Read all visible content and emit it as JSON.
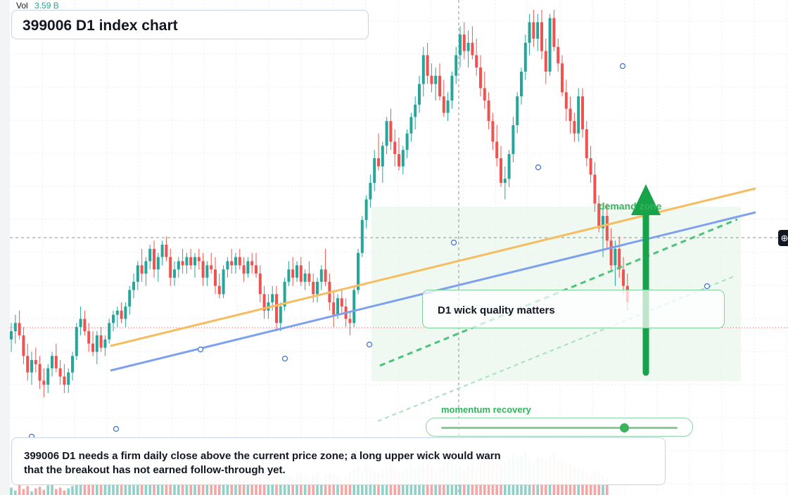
{
  "title": "399006 D1 index chart",
  "volume_legend": {
    "label": "Vol",
    "value": "3.59 B"
  },
  "annotations": {
    "wick_callout": "D1 wick quality matters",
    "demand_zone": "demand zone",
    "momentum_label": "momentum recovery",
    "momentum_level": 0.77,
    "note": "399006 D1 needs a firm daily close above the current price zone; a long upper wick would warn that the breakout has not earned follow-through yet."
  },
  "icons": {
    "crosshair": "crosshair-add-icon"
  },
  "colors": {
    "up": "#26a69a",
    "down": "#ef5350",
    "up_volume": "#8fd1c8",
    "down_volume": "#f2a7a6",
    "orange_trendline": "#f6bd60",
    "blue_trendline": "#7ea1ee",
    "green_trendline": "#4cc27a",
    "demand_arrow": "#16a34a",
    "demand_zone": "#eaf7ee"
  },
  "chart_data": {
    "type": "candlestick",
    "timeframe": "D1",
    "symbol": "399006",
    "y_range": [
      0,
      100
    ],
    "candles": [
      {
        "o": 20,
        "h": 24,
        "l": 17,
        "c": 22
      },
      {
        "o": 22,
        "h": 26,
        "l": 19,
        "c": 24
      },
      {
        "o": 24,
        "h": 27,
        "l": 20,
        "c": 21
      },
      {
        "o": 21,
        "h": 23,
        "l": 14,
        "c": 16
      },
      {
        "o": 16,
        "h": 19,
        "l": 10,
        "c": 12
      },
      {
        "o": 12,
        "h": 17,
        "l": 9,
        "c": 15
      },
      {
        "o": 15,
        "h": 18,
        "l": 12,
        "c": 14
      },
      {
        "o": 14,
        "h": 16,
        "l": 8,
        "c": 10
      },
      {
        "o": 10,
        "h": 13,
        "l": 6,
        "c": 9
      },
      {
        "o": 9,
        "h": 14,
        "l": 7,
        "c": 13
      },
      {
        "o": 13,
        "h": 17,
        "l": 11,
        "c": 16
      },
      {
        "o": 16,
        "h": 19,
        "l": 12,
        "c": 13
      },
      {
        "o": 13,
        "h": 15,
        "l": 9,
        "c": 11
      },
      {
        "o": 11,
        "h": 14,
        "l": 7,
        "c": 9
      },
      {
        "o": 9,
        "h": 13,
        "l": 7,
        "c": 12
      },
      {
        "o": 12,
        "h": 17,
        "l": 10,
        "c": 16
      },
      {
        "o": 16,
        "h": 24,
        "l": 15,
        "c": 23
      },
      {
        "o": 23,
        "h": 28,
        "l": 21,
        "c": 25
      },
      {
        "o": 25,
        "h": 27,
        "l": 21,
        "c": 22
      },
      {
        "o": 22,
        "h": 24,
        "l": 17,
        "c": 19
      },
      {
        "o": 19,
        "h": 22,
        "l": 16,
        "c": 17
      },
      {
        "o": 17,
        "h": 22,
        "l": 14,
        "c": 21
      },
      {
        "o": 21,
        "h": 23,
        "l": 17,
        "c": 18
      },
      {
        "o": 18,
        "h": 21,
        "l": 16,
        "c": 20
      },
      {
        "o": 20,
        "h": 25,
        "l": 19,
        "c": 24
      },
      {
        "o": 24,
        "h": 27,
        "l": 22,
        "c": 26
      },
      {
        "o": 26,
        "h": 28,
        "l": 23,
        "c": 27
      },
      {
        "o": 27,
        "h": 29,
        "l": 24,
        "c": 25
      },
      {
        "o": 25,
        "h": 29,
        "l": 23,
        "c": 28
      },
      {
        "o": 28,
        "h": 33,
        "l": 26,
        "c": 32
      },
      {
        "o": 32,
        "h": 36,
        "l": 30,
        "c": 34
      },
      {
        "o": 34,
        "h": 39,
        "l": 32,
        "c": 38
      },
      {
        "o": 38,
        "h": 42,
        "l": 34,
        "c": 36
      },
      {
        "o": 36,
        "h": 40,
        "l": 33,
        "c": 39
      },
      {
        "o": 39,
        "h": 43,
        "l": 37,
        "c": 42
      },
      {
        "o": 42,
        "h": 44,
        "l": 35,
        "c": 37
      },
      {
        "o": 37,
        "h": 41,
        "l": 34,
        "c": 40
      },
      {
        "o": 40,
        "h": 44,
        "l": 38,
        "c": 43
      },
      {
        "o": 43,
        "h": 45,
        "l": 39,
        "c": 40
      },
      {
        "o": 40,
        "h": 42,
        "l": 33,
        "c": 35
      },
      {
        "o": 35,
        "h": 39,
        "l": 33,
        "c": 37
      },
      {
        "o": 37,
        "h": 40,
        "l": 35,
        "c": 39
      },
      {
        "o": 39,
        "h": 42,
        "l": 36,
        "c": 38
      },
      {
        "o": 38,
        "h": 41,
        "l": 36,
        "c": 40
      },
      {
        "o": 40,
        "h": 42,
        "l": 37,
        "c": 38
      },
      {
        "o": 38,
        "h": 41,
        "l": 35,
        "c": 40
      },
      {
        "o": 40,
        "h": 42,
        "l": 37,
        "c": 39
      },
      {
        "o": 39,
        "h": 41,
        "l": 33,
        "c": 35
      },
      {
        "o": 35,
        "h": 39,
        "l": 33,
        "c": 38
      },
      {
        "o": 38,
        "h": 41,
        "l": 36,
        "c": 37
      },
      {
        "o": 37,
        "h": 40,
        "l": 31,
        "c": 33
      },
      {
        "o": 33,
        "h": 36,
        "l": 30,
        "c": 31
      },
      {
        "o": 31,
        "h": 38,
        "l": 30,
        "c": 37
      },
      {
        "o": 37,
        "h": 40,
        "l": 35,
        "c": 39
      },
      {
        "o": 39,
        "h": 42,
        "l": 36,
        "c": 38
      },
      {
        "o": 38,
        "h": 41,
        "l": 36,
        "c": 40
      },
      {
        "o": 40,
        "h": 42,
        "l": 37,
        "c": 38
      },
      {
        "o": 38,
        "h": 40,
        "l": 34,
        "c": 36
      },
      {
        "o": 36,
        "h": 40,
        "l": 35,
        "c": 39
      },
      {
        "o": 39,
        "h": 41,
        "l": 36,
        "c": 38
      },
      {
        "o": 38,
        "h": 41,
        "l": 35,
        "c": 36
      },
      {
        "o": 36,
        "h": 38,
        "l": 29,
        "c": 31
      },
      {
        "o": 31,
        "h": 33,
        "l": 25,
        "c": 27
      },
      {
        "o": 27,
        "h": 31,
        "l": 25,
        "c": 29
      },
      {
        "o": 29,
        "h": 33,
        "l": 27,
        "c": 31
      },
      {
        "o": 31,
        "h": 33,
        "l": 22,
        "c": 24
      },
      {
        "o": 24,
        "h": 29,
        "l": 22,
        "c": 28
      },
      {
        "o": 28,
        "h": 35,
        "l": 27,
        "c": 34
      },
      {
        "o": 34,
        "h": 39,
        "l": 33,
        "c": 37
      },
      {
        "o": 37,
        "h": 40,
        "l": 33,
        "c": 35
      },
      {
        "o": 35,
        "h": 39,
        "l": 34,
        "c": 38
      },
      {
        "o": 38,
        "h": 40,
        "l": 33,
        "c": 34
      },
      {
        "o": 34,
        "h": 37,
        "l": 32,
        "c": 36
      },
      {
        "o": 36,
        "h": 39,
        "l": 33,
        "c": 34
      },
      {
        "o": 34,
        "h": 36,
        "l": 29,
        "c": 31
      },
      {
        "o": 31,
        "h": 35,
        "l": 29,
        "c": 34
      },
      {
        "o": 34,
        "h": 38,
        "l": 32,
        "c": 37
      },
      {
        "o": 37,
        "h": 42,
        "l": 33,
        "c": 34
      },
      {
        "o": 34,
        "h": 36,
        "l": 27,
        "c": 29
      },
      {
        "o": 29,
        "h": 32,
        "l": 23,
        "c": 26
      },
      {
        "o": 26,
        "h": 31,
        "l": 25,
        "c": 30
      },
      {
        "o": 30,
        "h": 32,
        "l": 26,
        "c": 28
      },
      {
        "o": 28,
        "h": 30,
        "l": 23,
        "c": 25
      },
      {
        "o": 25,
        "h": 27,
        "l": 21,
        "c": 24
      },
      {
        "o": 24,
        "h": 33,
        "l": 23,
        "c": 32
      },
      {
        "o": 32,
        "h": 42,
        "l": 31,
        "c": 41
      },
      {
        "o": 41,
        "h": 50,
        "l": 40,
        "c": 49
      },
      {
        "o": 49,
        "h": 55,
        "l": 47,
        "c": 54
      },
      {
        "o": 54,
        "h": 60,
        "l": 52,
        "c": 58
      },
      {
        "o": 58,
        "h": 66,
        "l": 56,
        "c": 64
      },
      {
        "o": 64,
        "h": 70,
        "l": 61,
        "c": 62
      },
      {
        "o": 62,
        "h": 68,
        "l": 58,
        "c": 67
      },
      {
        "o": 67,
        "h": 74,
        "l": 65,
        "c": 73
      },
      {
        "o": 73,
        "h": 76,
        "l": 66,
        "c": 68
      },
      {
        "o": 68,
        "h": 71,
        "l": 62,
        "c": 65
      },
      {
        "o": 65,
        "h": 69,
        "l": 61,
        "c": 62
      },
      {
        "o": 62,
        "h": 67,
        "l": 60,
        "c": 66
      },
      {
        "o": 66,
        "h": 71,
        "l": 64,
        "c": 70
      },
      {
        "o": 70,
        "h": 75,
        "l": 68,
        "c": 74
      },
      {
        "o": 74,
        "h": 79,
        "l": 71,
        "c": 77
      },
      {
        "o": 77,
        "h": 84,
        "l": 75,
        "c": 82
      },
      {
        "o": 82,
        "h": 91,
        "l": 79,
        "c": 89
      },
      {
        "o": 89,
        "h": 92,
        "l": 82,
        "c": 84
      },
      {
        "o": 84,
        "h": 87,
        "l": 80,
        "c": 82
      },
      {
        "o": 82,
        "h": 86,
        "l": 78,
        "c": 84
      },
      {
        "o": 84,
        "h": 87,
        "l": 78,
        "c": 79
      },
      {
        "o": 79,
        "h": 83,
        "l": 74,
        "c": 75
      },
      {
        "o": 75,
        "h": 80,
        "l": 73,
        "c": 78
      },
      {
        "o": 78,
        "h": 85,
        "l": 76,
        "c": 84
      },
      {
        "o": 84,
        "h": 91,
        "l": 82,
        "c": 89
      },
      {
        "o": 89,
        "h": 96,
        "l": 86,
        "c": 94
      },
      {
        "o": 94,
        "h": 97,
        "l": 88,
        "c": 90
      },
      {
        "o": 90,
        "h": 95,
        "l": 86,
        "c": 92
      },
      {
        "o": 92,
        "h": 96,
        "l": 88,
        "c": 89
      },
      {
        "o": 89,
        "h": 93,
        "l": 84,
        "c": 86
      },
      {
        "o": 86,
        "h": 89,
        "l": 79,
        "c": 81
      },
      {
        "o": 81,
        "h": 85,
        "l": 76,
        "c": 78
      },
      {
        "o": 78,
        "h": 80,
        "l": 71,
        "c": 73
      },
      {
        "o": 73,
        "h": 75,
        "l": 66,
        "c": 68
      },
      {
        "o": 68,
        "h": 72,
        "l": 62,
        "c": 64
      },
      {
        "o": 64,
        "h": 67,
        "l": 57,
        "c": 58
      },
      {
        "o": 58,
        "h": 62,
        "l": 54,
        "c": 59
      },
      {
        "o": 59,
        "h": 66,
        "l": 57,
        "c": 65
      },
      {
        "o": 65,
        "h": 74,
        "l": 63,
        "c": 72
      },
      {
        "o": 72,
        "h": 80,
        "l": 70,
        "c": 79
      },
      {
        "o": 79,
        "h": 86,
        "l": 77,
        "c": 85
      },
      {
        "o": 85,
        "h": 94,
        "l": 83,
        "c": 92
      },
      {
        "o": 92,
        "h": 99,
        "l": 89,
        "c": 97
      },
      {
        "o": 97,
        "h": 100,
        "l": 91,
        "c": 93
      },
      {
        "o": 93,
        "h": 99,
        "l": 90,
        "c": 97
      },
      {
        "o": 97,
        "h": 100,
        "l": 88,
        "c": 90
      },
      {
        "o": 90,
        "h": 93,
        "l": 82,
        "c": 85
      },
      {
        "o": 85,
        "h": 99,
        "l": 84,
        "c": 98
      },
      {
        "o": 98,
        "h": 100,
        "l": 90,
        "c": 91
      },
      {
        "o": 91,
        "h": 93,
        "l": 85,
        "c": 87
      },
      {
        "o": 87,
        "h": 89,
        "l": 79,
        "c": 80
      },
      {
        "o": 80,
        "h": 83,
        "l": 73,
        "c": 76
      },
      {
        "o": 76,
        "h": 79,
        "l": 70,
        "c": 73
      },
      {
        "o": 73,
        "h": 75,
        "l": 68,
        "c": 70
      },
      {
        "o": 70,
        "h": 81,
        "l": 68,
        "c": 79
      },
      {
        "o": 79,
        "h": 81,
        "l": 69,
        "c": 71
      },
      {
        "o": 71,
        "h": 73,
        "l": 62,
        "c": 64
      },
      {
        "o": 64,
        "h": 67,
        "l": 58,
        "c": 60
      },
      {
        "o": 60,
        "h": 63,
        "l": 51,
        "c": 53
      },
      {
        "o": 53,
        "h": 55,
        "l": 46,
        "c": 47
      },
      {
        "o": 47,
        "h": 52,
        "l": 40,
        "c": 50
      },
      {
        "o": 50,
        "h": 53,
        "l": 42,
        "c": 44
      },
      {
        "o": 44,
        "h": 47,
        "l": 37,
        "c": 38
      },
      {
        "o": 38,
        "h": 44,
        "l": 33,
        "c": 42
      },
      {
        "o": 42,
        "h": 45,
        "l": 35,
        "c": 37
      },
      {
        "o": 37,
        "h": 40,
        "l": 31,
        "c": 33
      },
      {
        "o": 33,
        "h": 36,
        "l": 27,
        "c": 29
      }
    ],
    "volume_scale_max": 100,
    "volume": [
      10,
      6,
      14,
      8,
      12,
      5,
      9,
      11,
      7,
      13,
      15,
      8,
      10,
      6,
      9,
      12,
      30,
      36,
      22,
      18,
      15,
      20,
      17,
      21,
      24,
      19,
      26,
      22,
      25,
      31,
      28,
      34,
      27,
      30,
      33,
      23,
      26,
      29,
      21,
      18,
      22,
      25,
      19,
      23,
      20,
      24,
      21,
      27,
      22,
      19,
      26,
      24,
      30,
      23,
      18,
      21,
      25,
      20,
      28,
      24,
      19,
      27,
      33,
      25,
      22,
      35,
      28,
      32,
      26,
      24,
      29,
      30,
      25,
      23,
      27,
      31,
      22,
      26,
      29,
      28,
      24,
      21,
      26,
      30,
      34,
      38,
      31,
      40,
      36,
      33,
      29,
      34,
      38,
      42,
      35,
      30,
      33,
      37,
      41,
      36,
      39,
      45,
      42,
      38,
      33,
      36,
      40,
      44,
      47,
      41,
      38,
      34,
      39,
      43,
      37,
      40,
      46,
      52,
      48,
      44,
      41,
      45,
      50,
      55,
      49,
      53,
      58,
      47,
      43,
      51,
      49,
      46,
      52,
      55,
      48,
      44,
      40,
      42,
      38,
      36,
      34,
      30,
      27,
      33,
      29,
      26,
      24
    ]
  }
}
